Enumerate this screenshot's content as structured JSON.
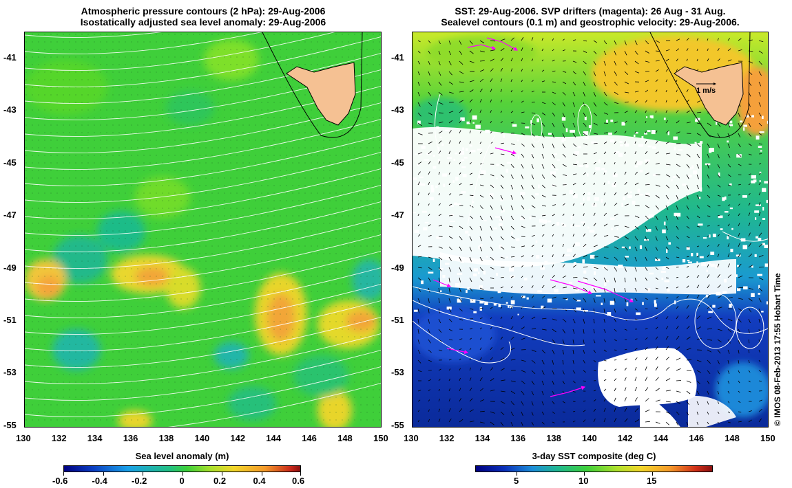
{
  "left_panel": {
    "title_line1": "Atmospheric pressure contours (2 hPa): 29-Aug-2006",
    "title_line2": "Isostatically adjusted sea level anomaly: 29-Aug-2006",
    "x_ticks": [
      "130",
      "132",
      "134",
      "136",
      "138",
      "140",
      "142",
      "144",
      "146",
      "148",
      "150"
    ],
    "y_ticks": [
      "-41",
      "-43",
      "-45",
      "-47",
      "-49",
      "-51",
      "-53",
      "-55"
    ],
    "colorbar": {
      "title": "Sea level anomaly (m)",
      "ticks": [
        "-0.6",
        "-0.4",
        "-0.2",
        "0",
        "0.2",
        "0.4",
        "0.6"
      ]
    }
  },
  "right_panel": {
    "title_line1": "SST: 29-Aug-2006. SVP drifters (magenta): 26 Aug - 31 Aug.",
    "title_line2": "Sealevel contours (0.1 m) and geostrophic velocity: 29-Aug-2006.",
    "x_ticks": [
      "130",
      "132",
      "134",
      "136",
      "138",
      "140",
      "142",
      "144",
      "146",
      "148",
      "150"
    ],
    "y_ticks": [
      "-41",
      "-43",
      "-45",
      "-47",
      "-49",
      "-51",
      "-53",
      "-55"
    ],
    "scale_label": "1 m/s",
    "colorbar": {
      "title": "3-day SST composite (deg C)",
      "ticks": [
        "5",
        "10",
        "15"
      ]
    }
  },
  "credit": "© IMOS 08-Feb-2013 17:55 Hobart Time",
  "colors": {
    "land": "#f5c193",
    "contour": "#ffffff",
    "drifter": "#ff00ff",
    "cold": "#0a2a9a",
    "mid": "#22b14c",
    "warm": "#ffd700"
  }
}
